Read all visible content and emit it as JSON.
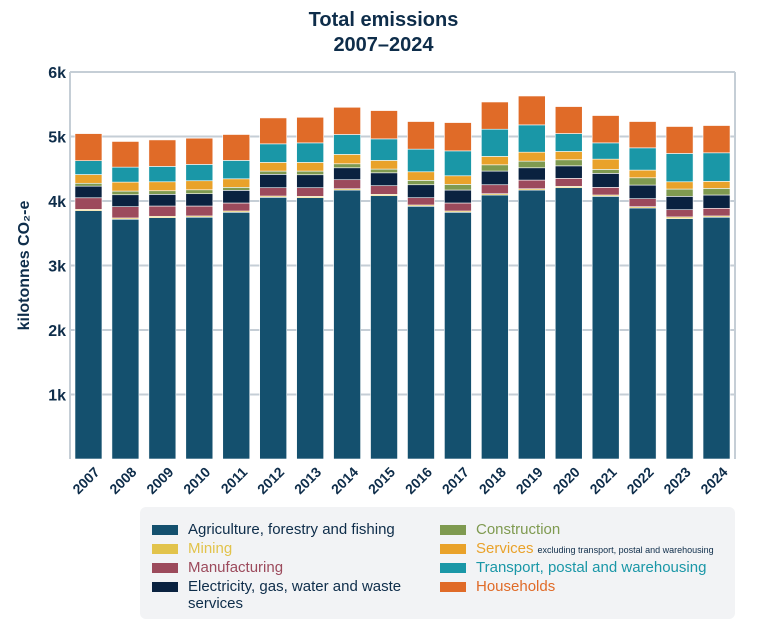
{
  "chart_data": {
    "type": "bar",
    "stacked": true,
    "title": "Total emissions",
    "subtitle": "2007–2024",
    "ylabel": "kilotonnes CO₂-e",
    "xlabel": "",
    "ylim": [
      0,
      6000
    ],
    "yticks": [
      {
        "v": 1000,
        "label": "1k"
      },
      {
        "v": 2000,
        "label": "2k"
      },
      {
        "v": 3000,
        "label": "3k"
      },
      {
        "v": 4000,
        "label": "4k"
      },
      {
        "v": 5000,
        "label": "5k"
      },
      {
        "v": 6000,
        "label": "6k"
      }
    ],
    "grid": true,
    "legend_position": "bottom",
    "categories": [
      "2007",
      "2008",
      "2009",
      "2010",
      "2011",
      "2012",
      "2013",
      "2014",
      "2015",
      "2016",
      "2017",
      "2018",
      "2019",
      "2020",
      "2021",
      "2022",
      "2023",
      "2024"
    ],
    "series": [
      {
        "name": "Agriculture, forestry and fishing",
        "color": "#14506e",
        "values": [
          3850,
          3717,
          3742,
          3748,
          3825,
          4057,
          4051,
          4170,
          4082,
          3918,
          3825,
          4093,
          4170,
          4206,
          4072,
          3892,
          3727,
          3748
        ]
      },
      {
        "name": "Mining",
        "color": "#e2c34b",
        "values": [
          20,
          20,
          21,
          20,
          20,
          20,
          21,
          20,
          21,
          20,
          20,
          20,
          20,
          21,
          21,
          20,
          26,
          20
        ]
      },
      {
        "name": "Manufacturing",
        "color": "#9c4a5c",
        "values": [
          180,
          175,
          159,
          154,
          124,
          129,
          134,
          140,
          134,
          113,
          124,
          139,
          134,
          124,
          118,
          124,
          112,
          119
        ]
      },
      {
        "name": "Electricity, gas, water and waste services",
        "color": "#0a2240",
        "values": [
          180,
          185,
          181,
          191,
          196,
          207,
          201,
          185,
          200,
          201,
          201,
          212,
          191,
          194,
          217,
          211,
          207,
          206
        ]
      },
      {
        "name": "Construction",
        "color": "#7f9a50",
        "values": [
          45,
          57,
          56,
          61,
          47,
          51,
          57,
          62,
          58,
          68,
          88,
          97,
          103,
          94,
          62,
          113,
          113,
          103
        ]
      },
      {
        "name": "Services",
        "note": "excluding transport, postal and warehousing",
        "color": "#e9a22a",
        "values": [
          135,
          139,
          139,
          140,
          132,
          134,
          134,
          145,
          134,
          133,
          133,
          130,
          139,
          129,
          159,
          119,
          113,
          108
        ]
      },
      {
        "name": "Transport, postal and warehousing",
        "color": "#1a97a7",
        "values": [
          215,
          232,
          238,
          253,
          285,
          288,
          303,
          309,
          334,
          351,
          386,
          422,
          423,
          278,
          252,
          345,
          439,
          443
        ]
      },
      {
        "name": "Households",
        "color": "#e06b28",
        "values": [
          420,
          398,
          411,
          407,
          402,
          402,
          397,
          422,
          439,
          428,
          439,
          422,
          448,
          418,
          424,
          408,
          418,
          423
        ]
      }
    ]
  }
}
